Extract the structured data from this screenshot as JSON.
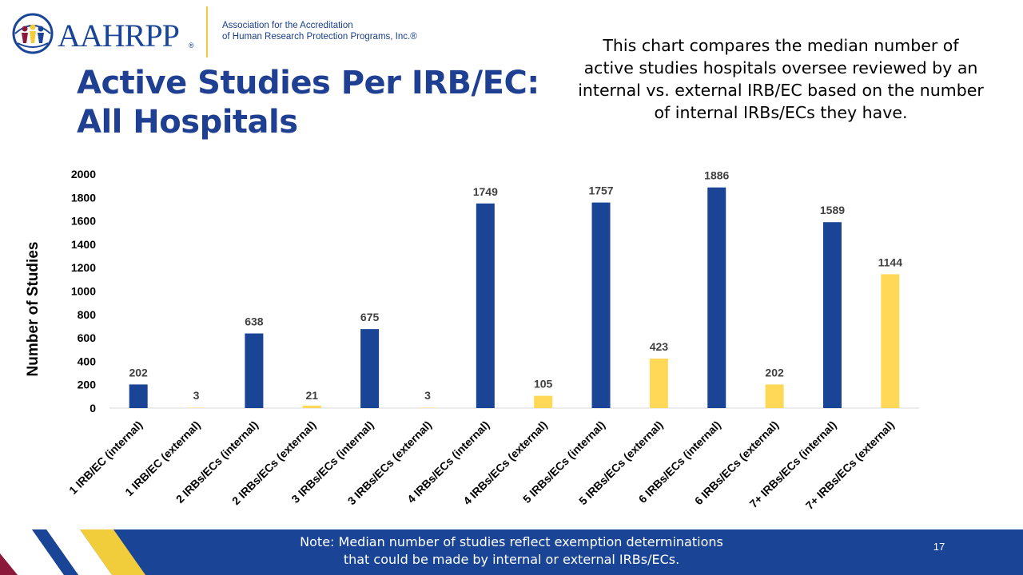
{
  "header": {
    "logo_text": "AAHRPP",
    "registered_mark": "®",
    "org_name_line1": "Association for the Accreditation",
    "org_name_line2": "of Human Research Protection Programs, Inc.®"
  },
  "slide": {
    "title_line1": "Active Studies Per IRB/EC:",
    "title_line2": "All Hospitals",
    "description": "This chart compares the median number of active studies hospitals oversee reviewed by an internal vs. external IRB/EC based on the number of internal IRBs/ECs they have."
  },
  "colors": {
    "brand_blue": "#1a4597",
    "internal_bar": "#1a4597",
    "external_bar": "#ffd857",
    "accent_yellow": "#f2cd3b",
    "accent_maroon": "#8b1a3a",
    "title_blue": "#1f3f93"
  },
  "chart_data": {
    "type": "bar",
    "title": "",
    "ylabel": "Number of Studies",
    "xlabel": "",
    "ylim": [
      0,
      2000
    ],
    "yticks": [
      0,
      200,
      400,
      600,
      800,
      1000,
      1200,
      1400,
      1600,
      1800,
      2000
    ],
    "grid": false,
    "legend": "none",
    "categories": [
      "1 IRB/EC (internal)",
      "1 IRB/EC (external)",
      "2 IRBs/ECs (internal)",
      "2 IRBs/ECs (external)",
      "3 IRBs/ECs (internal)",
      "3 IRBs/ECs (external)",
      "4 IRBs/ECs (internal)",
      "4 IRBs/ECs (external)",
      "5 IRBs/ECs (internal)",
      "5 IRBs/ECs (external)",
      "6 IRBs/ECs (internal)",
      "6 IRBs/ECs (external)",
      "7+ IRBs/ECs (internal)",
      "7+ IRBs/ECs (external)"
    ],
    "values": [
      202,
      3,
      638,
      21,
      675,
      3,
      1749,
      105,
      1757,
      423,
      1886,
      202,
      1589,
      1144
    ],
    "bar_colors": [
      "#1a4597",
      "#ffd857",
      "#1a4597",
      "#ffd857",
      "#1a4597",
      "#ffd857",
      "#1a4597",
      "#ffd857",
      "#1a4597",
      "#ffd857",
      "#1a4597",
      "#ffd857",
      "#1a4597",
      "#ffd857"
    ]
  },
  "footer": {
    "note_line1": "Note: Median number of studies reflect exemption determinations",
    "note_line2": "that could be made by internal or external IRBs/ECs.",
    "page_number": "17"
  }
}
